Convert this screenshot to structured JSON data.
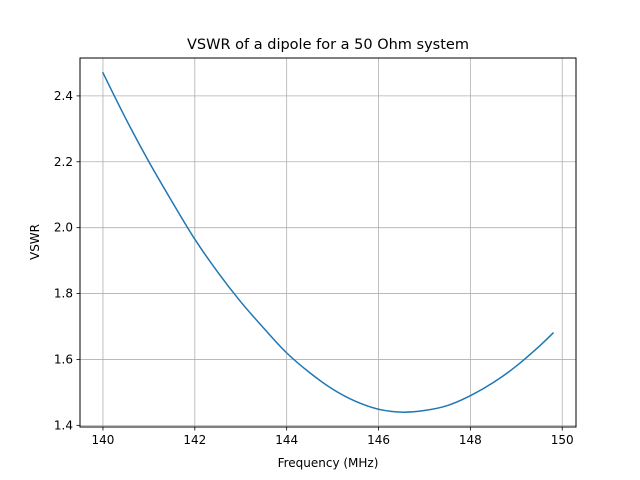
{
  "chart_data": {
    "type": "line",
    "title": "VSWR of a dipole for a 50 Ohm system",
    "xlabel": "Frequency (MHz)",
    "ylabel": "VSWR",
    "xlim": [
      139.5,
      150.3
    ],
    "ylim": [
      1.395,
      2.515
    ],
    "xticks": [
      140,
      142,
      144,
      146,
      148,
      150
    ],
    "xtick_labels": [
      "140",
      "142",
      "144",
      "146",
      "148",
      "150"
    ],
    "yticks": [
      1.4,
      1.6,
      1.8,
      2.0,
      2.2,
      2.4
    ],
    "ytick_labels": [
      "1.4",
      "1.6",
      "1.8",
      "2.0",
      "2.2",
      "2.4"
    ],
    "grid": true,
    "series": [
      {
        "color": "#1f77b4",
        "x": [
          140.0,
          140.5,
          141.0,
          141.5,
          142.0,
          142.5,
          143.0,
          143.5,
          144.0,
          144.5,
          145.0,
          145.5,
          146.0,
          146.5,
          147.0,
          147.5,
          148.0,
          148.5,
          149.0,
          149.5,
          149.8
        ],
        "y": [
          2.47,
          2.33,
          2.2,
          2.08,
          1.965,
          1.865,
          1.775,
          1.695,
          1.62,
          1.56,
          1.51,
          1.473,
          1.449,
          1.44,
          1.445,
          1.46,
          1.49,
          1.53,
          1.58,
          1.64,
          1.68
        ]
      }
    ]
  }
}
